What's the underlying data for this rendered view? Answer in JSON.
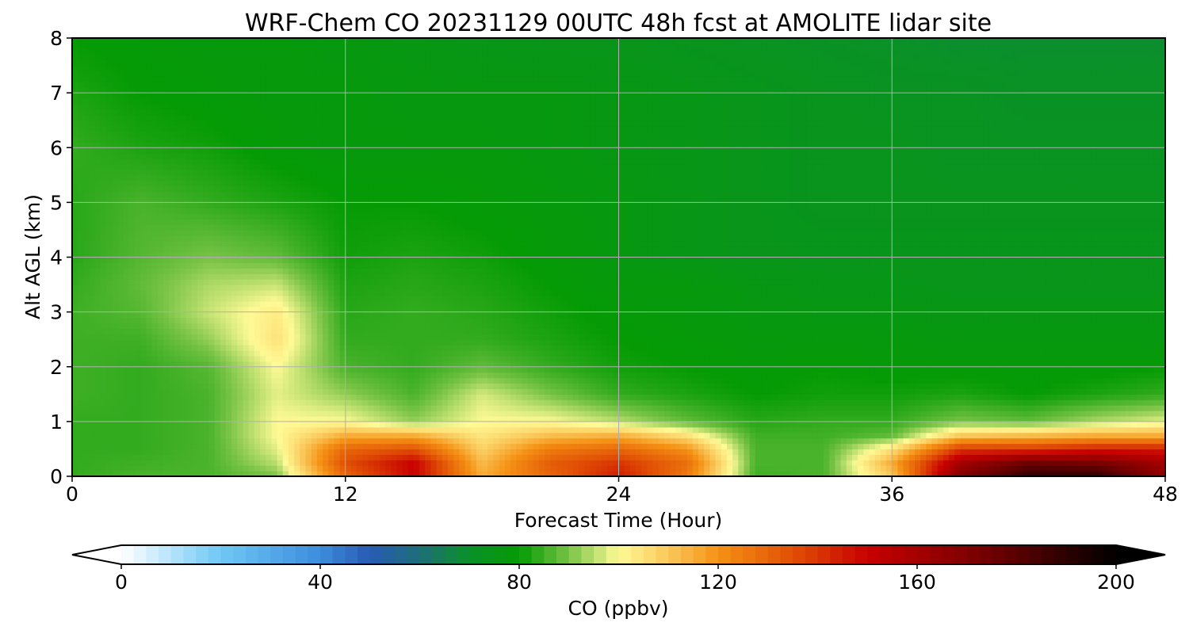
{
  "chart_data": {
    "type": "heatmap",
    "title": "WRF-Chem CO  20231129 00UTC 48h fcst at AMOLITE lidar site",
    "xlabel": "Forecast Time (Hour)",
    "ylabel": "Alt AGL (km)",
    "xlim": [
      0,
      48
    ],
    "ylim": [
      0,
      8
    ],
    "xticks": [
      0,
      12,
      24,
      36,
      48
    ],
    "yticks": [
      0,
      1,
      2,
      3,
      4,
      5,
      6,
      7,
      8
    ],
    "grid": true,
    "x": [
      0,
      3,
      6,
      9,
      12,
      15,
      18,
      21,
      24,
      27,
      30,
      33,
      36,
      39,
      42,
      45,
      48
    ],
    "y": [
      0,
      0.25,
      0.5,
      0.75,
      1,
      1.5,
      2,
      2.5,
      3,
      3.5,
      4,
      5,
      6,
      7,
      8
    ],
    "z": [
      [
        84,
        86,
        86,
        90,
        130,
        150,
        115,
        130,
        145,
        125,
        85,
        86,
        110,
        170,
        190,
        190,
        165
      ],
      [
        84,
        85,
        86,
        95,
        135,
        150,
        112,
        132,
        140,
        128,
        86,
        86,
        115,
        160,
        175,
        172,
        160
      ],
      [
        84,
        84,
        86,
        98,
        130,
        135,
        108,
        125,
        130,
        120,
        86,
        86,
        105,
        140,
        140,
        145,
        145
      ],
      [
        84,
        84,
        86,
        100,
        115,
        115,
        104,
        112,
        114,
        105,
        85,
        85,
        88,
        110,
        112,
        115,
        115
      ],
      [
        84,
        84,
        86,
        100,
        100,
        92,
        100,
        100,
        95,
        88,
        83,
        84,
        84,
        90,
        88,
        94,
        98
      ],
      [
        85,
        84,
        86,
        98,
        92,
        86,
        97,
        90,
        84,
        82,
        80,
        81,
        81,
        82,
        80,
        82,
        84
      ],
      [
        85,
        84,
        87,
        100,
        86,
        84,
        88,
        84,
        81,
        80,
        79,
        80,
        79,
        79,
        79,
        79,
        80
      ],
      [
        85,
        85,
        92,
        105,
        84,
        84,
        84,
        82,
        80,
        79,
        78,
        78,
        78,
        77,
        77,
        77,
        77
      ],
      [
        85,
        87,
        96,
        103,
        83,
        84,
        83,
        81,
        79,
        78,
        77,
        76,
        76,
        76,
        76,
        76,
        76
      ],
      [
        84,
        88,
        94,
        96,
        82,
        83,
        82,
        80,
        78,
        78,
        76,
        75,
        75,
        74,
        74,
        74,
        74
      ],
      [
        83,
        87,
        90,
        88,
        81,
        82,
        81,
        79,
        77,
        75,
        74,
        74,
        74,
        74,
        74,
        74,
        74
      ],
      [
        83,
        86,
        84,
        82,
        80,
        80,
        79,
        78,
        77,
        75,
        74,
        73,
        73,
        73,
        73,
        73,
        73
      ],
      [
        84,
        82,
        81,
        79,
        78,
        78,
        78,
        77,
        76,
        75,
        74,
        73,
        73,
        72,
        72,
        72,
        72
      ],
      [
        82,
        80,
        79,
        78,
        78,
        77,
        77,
        77,
        76,
        75,
        74,
        73,
        72,
        72,
        71,
        71,
        71
      ],
      [
        80,
        79,
        78,
        78,
        77,
        76,
        75,
        74,
        74,
        73,
        72,
        71,
        70,
        69,
        69,
        69,
        69
      ]
    ],
    "colorbar": {
      "label": "CO  (ppbv)",
      "min": 0,
      "max": 200,
      "ticks": [
        0,
        40,
        80,
        120,
        160,
        200
      ],
      "extend": "both"
    },
    "colors": {
      "under": "#ffffff",
      "over": "#000000",
      "grid": "#b0b0b0"
    }
  }
}
